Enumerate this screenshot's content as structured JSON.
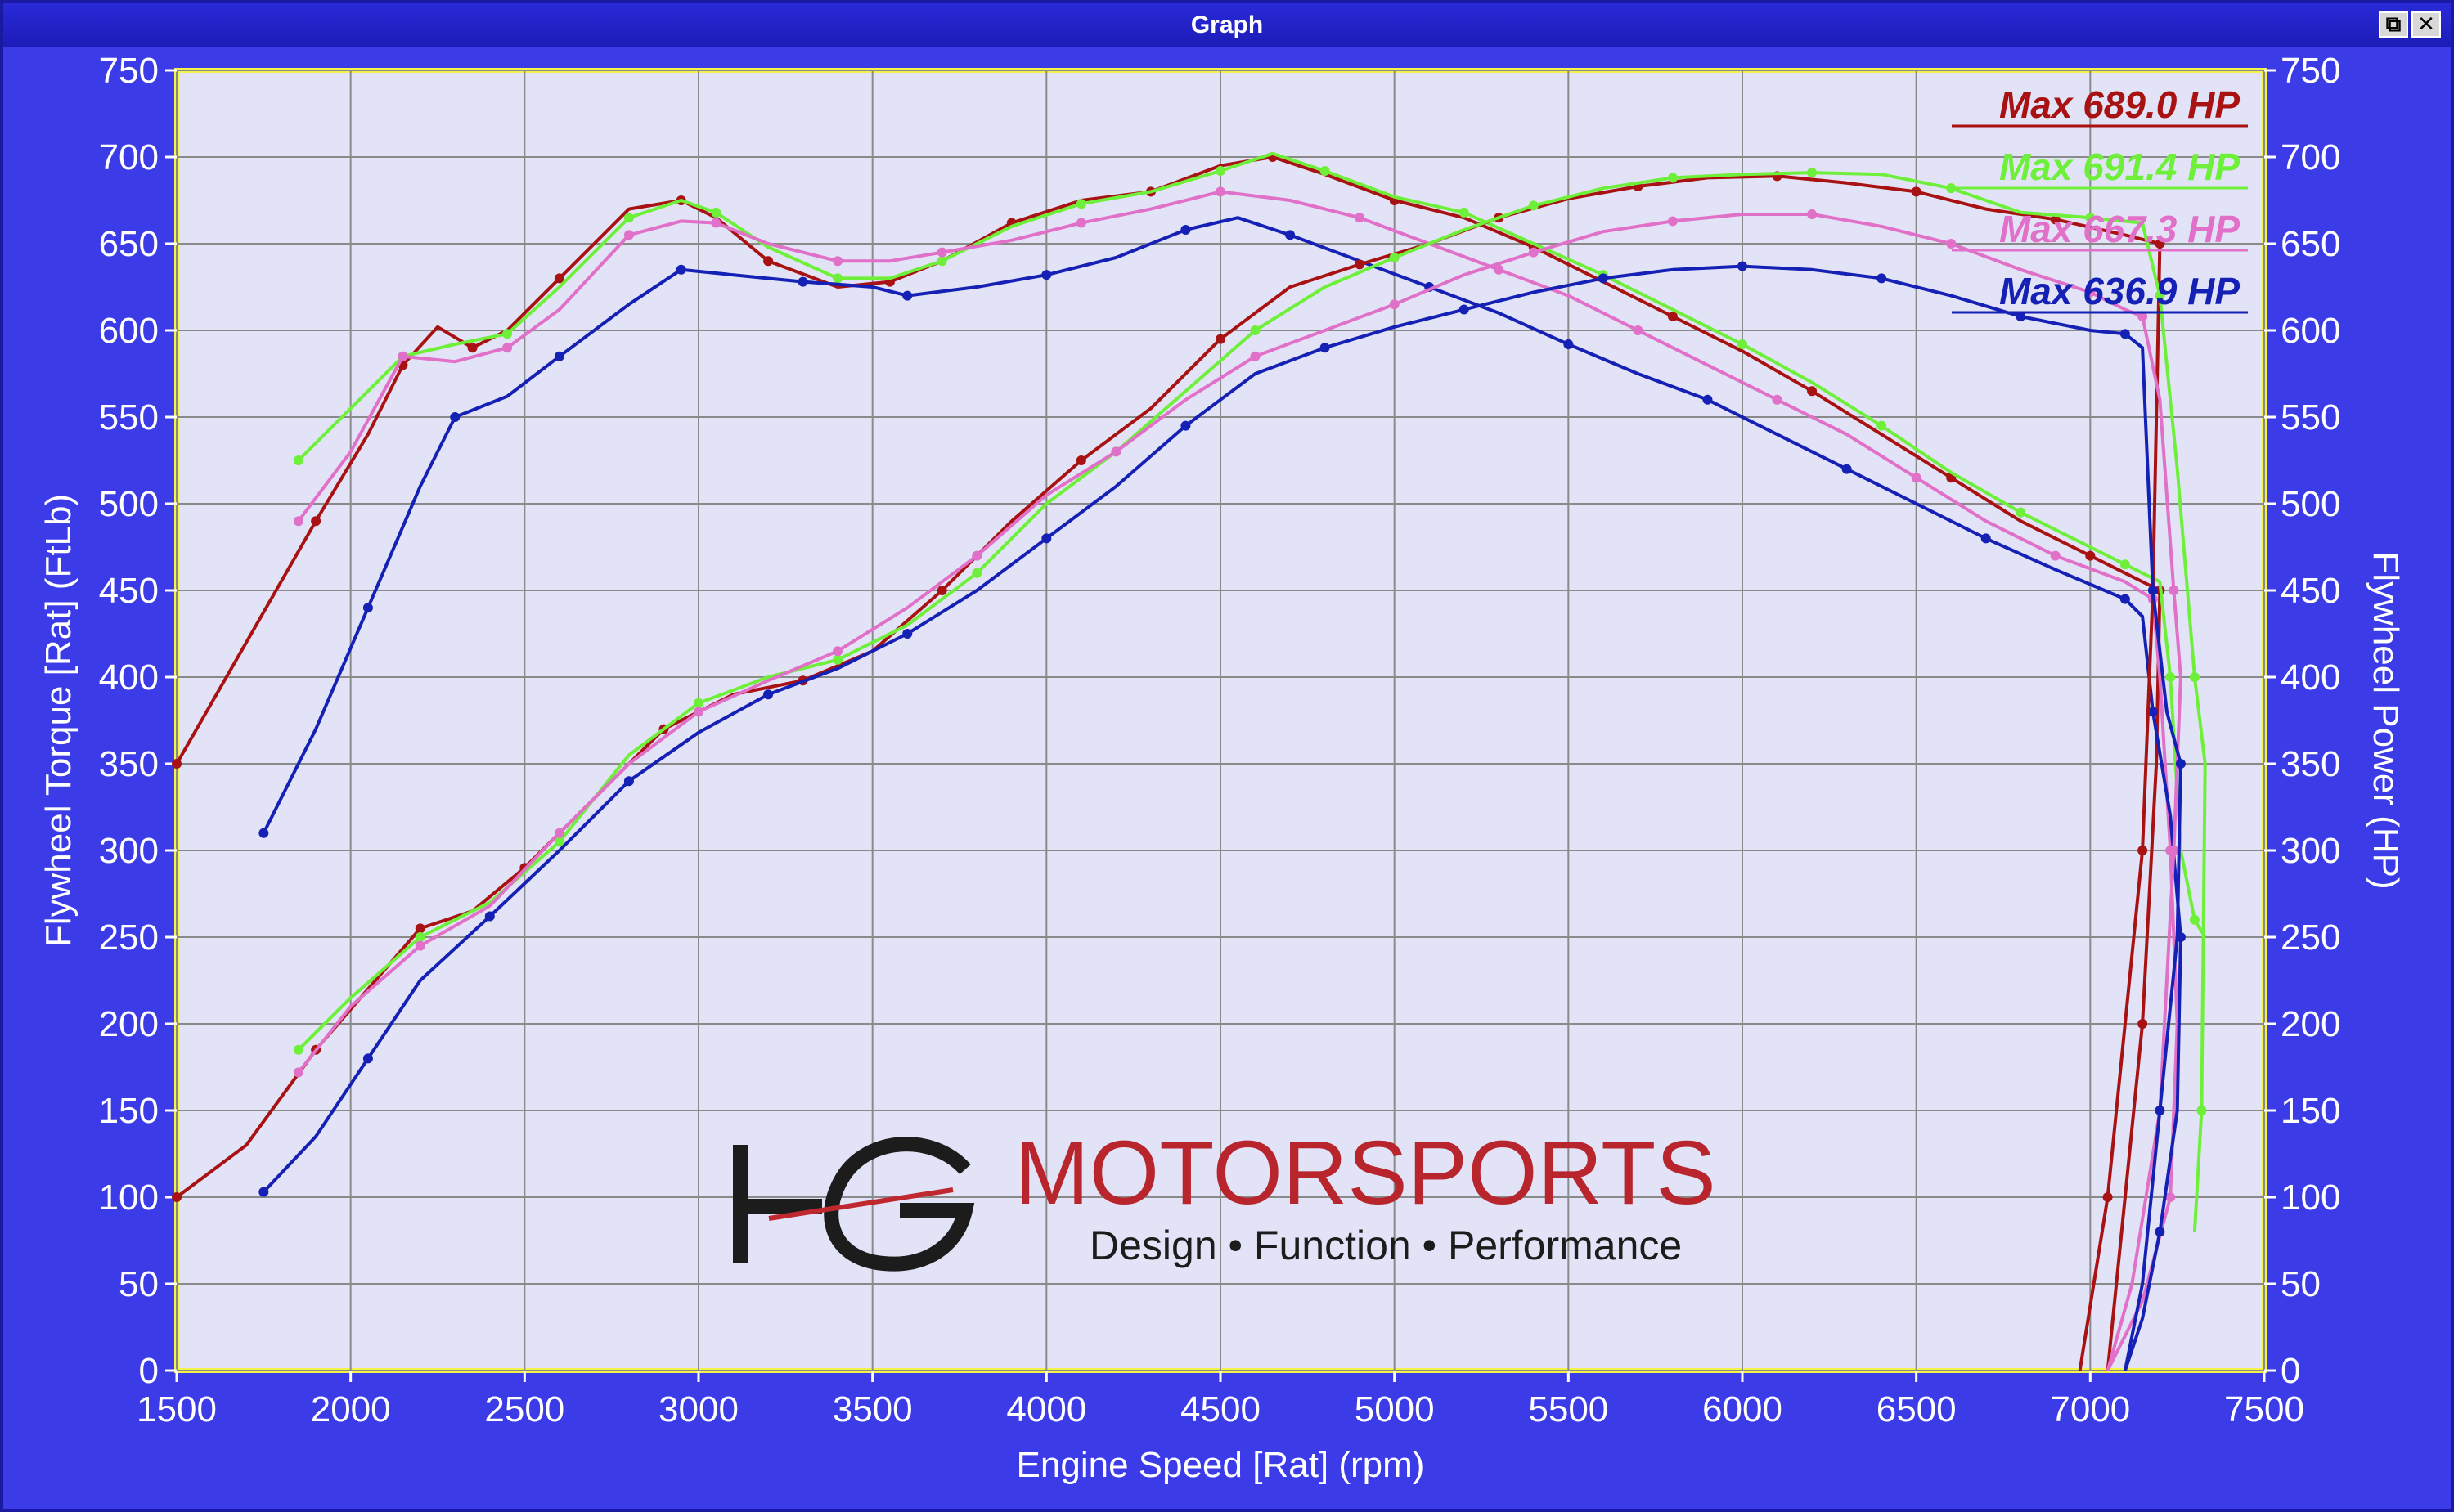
{
  "window": {
    "title": "Graph",
    "restore_icon": "restore-icon",
    "close_icon": "close-icon"
  },
  "colors": {
    "window_bg": "#3b3be8",
    "plot_bg": "#e3e3f7",
    "plot_border": "#f3f34a",
    "grid": "#8a8a8a",
    "red": "#a81212",
    "green": "#6ef03a",
    "pink": "#e070c8",
    "blue": "#1520b4"
  },
  "logo": {
    "mark": "HG",
    "name": "MOTORSPORTS",
    "tagline": "Design • Function • Performance"
  },
  "chart_data": {
    "type": "line",
    "xlabel": "Engine Speed [Rat] (rpm)",
    "ylabel_left": "Flywheel Torque [Rat] (FtLb)",
    "ylabel_right": "Flywheel Power (HP)",
    "xlim": [
      1500,
      7500
    ],
    "ylim": [
      0,
      750
    ],
    "x_ticks": [
      1500,
      2000,
      2500,
      3000,
      3500,
      4000,
      4500,
      5000,
      5500,
      6000,
      6500,
      7000,
      7500
    ],
    "y_ticks": [
      0,
      50,
      100,
      150,
      200,
      250,
      300,
      350,
      400,
      450,
      500,
      550,
      600,
      650,
      700,
      750
    ],
    "grid": true,
    "legend_position": "top-right",
    "legend": [
      {
        "label": "Max 689.0 HP",
        "color": "#a81212"
      },
      {
        "label": "Max 691.4 HP",
        "color": "#6ef03a"
      },
      {
        "label": "Max 667.3 HP",
        "color": "#e070c8"
      },
      {
        "label": "Max 636.9 HP",
        "color": "#1520b4"
      }
    ],
    "series": [
      {
        "kind": "torque",
        "color": "#a81212",
        "points": [
          [
            1500,
            350
          ],
          [
            1700,
            420
          ],
          [
            1900,
            490
          ],
          [
            2050,
            540
          ],
          [
            2150,
            580
          ],
          [
            2250,
            602
          ],
          [
            2350,
            590
          ],
          [
            2450,
            600
          ],
          [
            2600,
            630
          ],
          [
            2800,
            670
          ],
          [
            2950,
            675
          ],
          [
            3050,
            665
          ],
          [
            3200,
            640
          ],
          [
            3400,
            625
          ],
          [
            3550,
            628
          ],
          [
            3700,
            640
          ],
          [
            3900,
            662
          ],
          [
            4100,
            675
          ],
          [
            4300,
            680
          ],
          [
            4500,
            695
          ],
          [
            4650,
            700
          ],
          [
            4800,
            690
          ],
          [
            5000,
            675
          ],
          [
            5200,
            665
          ],
          [
            5400,
            648
          ],
          [
            5600,
            628
          ],
          [
            5800,
            608
          ],
          [
            6000,
            588
          ],
          [
            6200,
            565
          ],
          [
            6400,
            540
          ],
          [
            6600,
            515
          ],
          [
            6800,
            490
          ],
          [
            7000,
            470
          ],
          [
            7100,
            460
          ],
          [
            7200,
            450
          ],
          [
            7190,
            350
          ],
          [
            7150,
            200
          ],
          [
            7100,
            100
          ],
          [
            7050,
            0
          ]
        ]
      },
      {
        "kind": "torque",
        "color": "#6ef03a",
        "points": [
          [
            1850,
            525
          ],
          [
            2000,
            555
          ],
          [
            2150,
            585
          ],
          [
            2300,
            592
          ],
          [
            2450,
            598
          ],
          [
            2600,
            625
          ],
          [
            2800,
            665
          ],
          [
            2950,
            675
          ],
          [
            3050,
            668
          ],
          [
            3200,
            648
          ],
          [
            3400,
            630
          ],
          [
            3550,
            630
          ],
          [
            3700,
            640
          ],
          [
            3900,
            660
          ],
          [
            4100,
            673
          ],
          [
            4300,
            680
          ],
          [
            4500,
            692
          ],
          [
            4650,
            702
          ],
          [
            4800,
            692
          ],
          [
            5000,
            677
          ],
          [
            5200,
            668
          ],
          [
            5400,
            650
          ],
          [
            5600,
            632
          ],
          [
            5800,
            612
          ],
          [
            6000,
            592
          ],
          [
            6200,
            570
          ],
          [
            6400,
            545
          ],
          [
            6600,
            518
          ],
          [
            6800,
            495
          ],
          [
            7000,
            475
          ],
          [
            7100,
            465
          ],
          [
            7200,
            455
          ],
          [
            7230,
            400
          ],
          [
            7260,
            300
          ],
          [
            7300,
            260
          ],
          [
            7330,
            250
          ]
        ]
      },
      {
        "kind": "torque",
        "color": "#e070c8",
        "points": [
          [
            1850,
            490
          ],
          [
            2000,
            530
          ],
          [
            2150,
            585
          ],
          [
            2300,
            582
          ],
          [
            2450,
            590
          ],
          [
            2600,
            612
          ],
          [
            2800,
            655
          ],
          [
            2950,
            663
          ],
          [
            3050,
            662
          ],
          [
            3200,
            650
          ],
          [
            3400,
            640
          ],
          [
            3550,
            640
          ],
          [
            3700,
            645
          ],
          [
            3900,
            652
          ],
          [
            4100,
            662
          ],
          [
            4300,
            670
          ],
          [
            4500,
            680
          ],
          [
            4700,
            675
          ],
          [
            4900,
            665
          ],
          [
            5100,
            650
          ],
          [
            5300,
            635
          ],
          [
            5500,
            620
          ],
          [
            5700,
            600
          ],
          [
            5900,
            580
          ],
          [
            6100,
            560
          ],
          [
            6300,
            540
          ],
          [
            6500,
            515
          ],
          [
            6700,
            490
          ],
          [
            6900,
            470
          ],
          [
            7100,
            455
          ],
          [
            7180,
            445
          ],
          [
            7200,
            400
          ],
          [
            7230,
            300
          ],
          [
            7250,
            200
          ],
          [
            7230,
            100
          ],
          [
            7150,
            40
          ],
          [
            7050,
            0
          ]
        ]
      },
      {
        "kind": "torque",
        "color": "#1520b4",
        "points": [
          [
            1750,
            310
          ],
          [
            1900,
            370
          ],
          [
            2050,
            440
          ],
          [
            2200,
            510
          ],
          [
            2300,
            550
          ],
          [
            2450,
            562
          ],
          [
            2600,
            585
          ],
          [
            2800,
            615
          ],
          [
            2950,
            635
          ],
          [
            3100,
            632
          ],
          [
            3300,
            628
          ],
          [
            3500,
            625
          ],
          [
            3600,
            620
          ],
          [
            3800,
            625
          ],
          [
            4000,
            632
          ],
          [
            4200,
            642
          ],
          [
            4400,
            658
          ],
          [
            4550,
            665
          ],
          [
            4700,
            655
          ],
          [
            4900,
            640
          ],
          [
            5100,
            625
          ],
          [
            5300,
            610
          ],
          [
            5500,
            592
          ],
          [
            5700,
            575
          ],
          [
            5900,
            560
          ],
          [
            6100,
            540
          ],
          [
            6300,
            520
          ],
          [
            6500,
            500
          ],
          [
            6700,
            480
          ],
          [
            6900,
            462
          ],
          [
            7100,
            445
          ],
          [
            7150,
            435
          ],
          [
            7180,
            380
          ],
          [
            7230,
            320
          ],
          [
            7260,
            250
          ],
          [
            7250,
            150
          ],
          [
            7200,
            80
          ],
          [
            7150,
            30
          ],
          [
            7100,
            0
          ]
        ]
      },
      {
        "kind": "power",
        "color": "#a81212",
        "points": [
          [
            1500,
            100
          ],
          [
            1700,
            130
          ],
          [
            1900,
            185
          ],
          [
            2050,
            220
          ],
          [
            2200,
            255
          ],
          [
            2350,
            265
          ],
          [
            2500,
            290
          ],
          [
            2700,
            330
          ],
          [
            2900,
            370
          ],
          [
            3100,
            390
          ],
          [
            3300,
            398
          ],
          [
            3500,
            415
          ],
          [
            3700,
            450
          ],
          [
            3900,
            490
          ],
          [
            4100,
            525
          ],
          [
            4300,
            555
          ],
          [
            4500,
            595
          ],
          [
            4700,
            625
          ],
          [
            4900,
            638
          ],
          [
            5100,
            650
          ],
          [
            5300,
            665
          ],
          [
            5500,
            676
          ],
          [
            5700,
            683
          ],
          [
            5900,
            688
          ],
          [
            6100,
            689
          ],
          [
            6300,
            685
          ],
          [
            6500,
            680
          ],
          [
            6700,
            670
          ],
          [
            6900,
            664
          ],
          [
            7100,
            655
          ],
          [
            7200,
            650
          ],
          [
            7180,
            450
          ],
          [
            7150,
            300
          ],
          [
            7100,
            200
          ],
          [
            7050,
            100
          ],
          [
            6970,
            0
          ]
        ]
      },
      {
        "kind": "power",
        "color": "#6ef03a",
        "points": [
          [
            1850,
            185
          ],
          [
            2000,
            215
          ],
          [
            2200,
            250
          ],
          [
            2400,
            270
          ],
          [
            2600,
            305
          ],
          [
            2800,
            355
          ],
          [
            3000,
            385
          ],
          [
            3200,
            400
          ],
          [
            3400,
            410
          ],
          [
            3600,
            430
          ],
          [
            3800,
            460
          ],
          [
            4000,
            500
          ],
          [
            4200,
            530
          ],
          [
            4400,
            565
          ],
          [
            4600,
            600
          ],
          [
            4800,
            625
          ],
          [
            5000,
            642
          ],
          [
            5200,
            658
          ],
          [
            5400,
            672
          ],
          [
            5600,
            682
          ],
          [
            5800,
            688
          ],
          [
            6000,
            690
          ],
          [
            6200,
            691
          ],
          [
            6400,
            690
          ],
          [
            6600,
            682
          ],
          [
            6800,
            668
          ],
          [
            7000,
            665
          ],
          [
            7150,
            662
          ],
          [
            7200,
            620
          ],
          [
            7250,
            520
          ],
          [
            7300,
            400
          ],
          [
            7330,
            350
          ],
          [
            7320,
            150
          ],
          [
            7300,
            80
          ]
        ]
      },
      {
        "kind": "power",
        "color": "#e070c8",
        "points": [
          [
            1850,
            172
          ],
          [
            2000,
            210
          ],
          [
            2200,
            245
          ],
          [
            2400,
            268
          ],
          [
            2600,
            310
          ],
          [
            2800,
            350
          ],
          [
            3000,
            380
          ],
          [
            3200,
            398
          ],
          [
            3400,
            415
          ],
          [
            3600,
            440
          ],
          [
            3800,
            470
          ],
          [
            4000,
            505
          ],
          [
            4200,
            530
          ],
          [
            4400,
            560
          ],
          [
            4600,
            585
          ],
          [
            4800,
            600
          ],
          [
            5000,
            615
          ],
          [
            5200,
            632
          ],
          [
            5400,
            645
          ],
          [
            5600,
            657
          ],
          [
            5800,
            663
          ],
          [
            6000,
            667
          ],
          [
            6200,
            667
          ],
          [
            6400,
            660
          ],
          [
            6600,
            650
          ],
          [
            6800,
            635
          ],
          [
            7000,
            622
          ],
          [
            7100,
            612
          ],
          [
            7150,
            608
          ],
          [
            7200,
            560
          ],
          [
            7240,
            450
          ],
          [
            7260,
            400
          ],
          [
            7240,
            300
          ],
          [
            7200,
            150
          ],
          [
            7120,
            50
          ],
          [
            7050,
            0
          ]
        ]
      },
      {
        "kind": "power",
        "color": "#1520b4",
        "points": [
          [
            1750,
            103
          ],
          [
            1900,
            135
          ],
          [
            2050,
            180
          ],
          [
            2200,
            225
          ],
          [
            2400,
            262
          ],
          [
            2600,
            300
          ],
          [
            2800,
            340
          ],
          [
            3000,
            368
          ],
          [
            3200,
            390
          ],
          [
            3400,
            405
          ],
          [
            3600,
            425
          ],
          [
            3800,
            450
          ],
          [
            4000,
            480
          ],
          [
            4200,
            510
          ],
          [
            4400,
            545
          ],
          [
            4600,
            575
          ],
          [
            4800,
            590
          ],
          [
            5000,
            602
          ],
          [
            5200,
            612
          ],
          [
            5400,
            622
          ],
          [
            5600,
            630
          ],
          [
            5800,
            635
          ],
          [
            6000,
            637
          ],
          [
            6200,
            635
          ],
          [
            6400,
            630
          ],
          [
            6600,
            620
          ],
          [
            6800,
            608
          ],
          [
            7000,
            600
          ],
          [
            7100,
            598
          ],
          [
            7150,
            590
          ],
          [
            7180,
            450
          ],
          [
            7220,
            380
          ],
          [
            7260,
            350
          ],
          [
            7250,
            250
          ],
          [
            7200,
            150
          ],
          [
            7150,
            50
          ],
          [
            7100,
            0
          ]
        ]
      }
    ]
  }
}
